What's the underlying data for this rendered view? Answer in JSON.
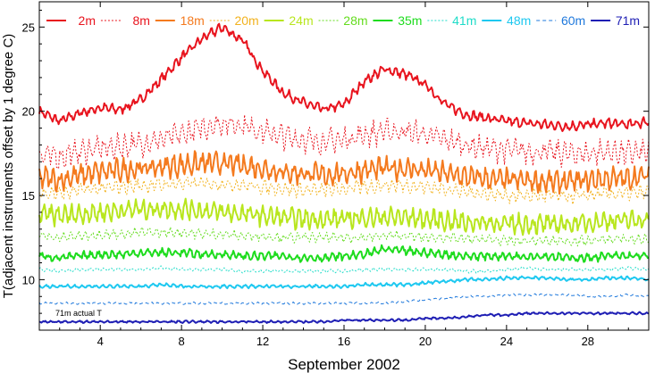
{
  "chart_data": {
    "type": "line",
    "title": "",
    "xlabel": "September 2002",
    "ylabel": "T(adjacent instruments offset by 1 degree C)",
    "xlim": [
      1,
      31
    ],
    "ylim": [
      7,
      26.5
    ],
    "x_ticks": [
      4,
      8,
      12,
      16,
      20,
      24,
      28
    ],
    "y_ticks": [
      10,
      15,
      20,
      25
    ],
    "grid": false,
    "legend_position": "top",
    "annotation": "71m actual T",
    "x_knots": [
      1,
      2,
      3,
      4,
      5,
      6,
      7,
      8,
      9,
      10,
      11,
      12,
      13,
      14,
      15,
      16,
      17,
      18,
      19,
      20,
      21,
      22,
      23,
      24,
      25,
      26,
      27,
      28,
      29,
      30,
      31
    ],
    "series": [
      {
        "name": "2m",
        "color": "#e8141e",
        "dash": "solid",
        "width": 2,
        "values": [
          20.0,
          19.4,
          19.9,
          20.2,
          20.1,
          20.7,
          21.9,
          23.2,
          24.3,
          25.0,
          24.2,
          22.4,
          21.1,
          20.5,
          20.1,
          20.4,
          21.8,
          22.5,
          22.2,
          21.6,
          20.4,
          19.8,
          19.6,
          19.4,
          19.3,
          19.2,
          19.1,
          19.2,
          19.3,
          19.2,
          19.4
        ]
      },
      {
        "name": "8m",
        "color": "#e8141e",
        "dash": "dotted",
        "width": 1,
        "values": [
          17.4,
          17.3,
          17.6,
          17.8,
          17.9,
          18.1,
          18.3,
          18.6,
          19.0,
          19.3,
          19.2,
          18.8,
          18.5,
          18.3,
          18.2,
          18.3,
          18.6,
          18.8,
          18.8,
          18.6,
          18.3,
          18.0,
          17.8,
          17.7,
          17.6,
          17.6,
          17.5,
          17.5,
          17.6,
          17.5,
          17.6
        ]
      },
      {
        "name": "18m",
        "color": "#f47a1e",
        "dash": "solid",
        "width": 2,
        "values": [
          16.1,
          15.9,
          16.2,
          16.4,
          16.5,
          16.6,
          16.7,
          16.8,
          16.9,
          16.9,
          16.8,
          16.6,
          16.4,
          16.3,
          16.2,
          16.3,
          16.5,
          16.6,
          16.6,
          16.5,
          16.3,
          16.1,
          16.0,
          15.9,
          15.9,
          15.8,
          15.8,
          15.9,
          16.0,
          16.0,
          16.2
        ]
      },
      {
        "name": "20m",
        "color": "#f2b21e",
        "dash": "dotted",
        "width": 1,
        "values": [
          15.2,
          15.1,
          15.3,
          15.4,
          15.5,
          15.6,
          15.6,
          15.7,
          15.7,
          15.7,
          15.6,
          15.5,
          15.4,
          15.3,
          15.3,
          15.4,
          15.5,
          15.6,
          15.6,
          15.5,
          15.4,
          15.2,
          15.1,
          15.0,
          15.0,
          15.0,
          14.9,
          15.0,
          15.1,
          15.1,
          15.2
        ]
      },
      {
        "name": "24m",
        "color": "#b8e61e",
        "dash": "solid",
        "width": 2,
        "values": [
          13.9,
          13.8,
          13.9,
          14.0,
          14.1,
          14.2,
          14.2,
          14.2,
          14.1,
          14.0,
          13.9,
          13.8,
          13.7,
          13.6,
          13.6,
          13.6,
          13.7,
          13.7,
          13.7,
          13.6,
          13.5,
          13.4,
          13.4,
          13.3,
          13.3,
          13.3,
          13.3,
          13.4,
          13.5,
          13.5,
          13.6
        ]
      },
      {
        "name": "28m",
        "color": "#64dc1e",
        "dash": "dotted",
        "width": 1,
        "values": [
          12.6,
          12.5,
          12.6,
          12.7,
          12.7,
          12.8,
          12.8,
          12.8,
          12.7,
          12.7,
          12.6,
          12.6,
          12.5,
          12.5,
          12.5,
          12.5,
          12.5,
          12.6,
          12.6,
          12.5,
          12.5,
          12.4,
          12.4,
          12.3,
          12.3,
          12.3,
          12.3,
          12.3,
          12.4,
          12.4,
          12.4
        ]
      },
      {
        "name": "35m",
        "color": "#1edc1e",
        "dash": "solid",
        "width": 2,
        "values": [
          11.4,
          11.3,
          11.4,
          11.5,
          11.5,
          11.6,
          11.6,
          11.6,
          11.5,
          11.5,
          11.4,
          11.4,
          11.4,
          11.3,
          11.3,
          11.4,
          11.5,
          11.8,
          11.7,
          11.6,
          11.5,
          11.4,
          11.4,
          11.4,
          11.4,
          11.4,
          11.3,
          11.3,
          11.4,
          11.4,
          11.4
        ]
      },
      {
        "name": "41m",
        "color": "#1edcc8",
        "dash": "dotted",
        "width": 1,
        "values": [
          10.6,
          10.5,
          10.6,
          10.6,
          10.6,
          10.6,
          10.7,
          10.6,
          10.6,
          10.6,
          10.5,
          10.5,
          10.5,
          10.5,
          10.5,
          10.5,
          10.6,
          10.6,
          10.6,
          10.6,
          10.6,
          10.5,
          10.5,
          10.6,
          10.7,
          10.6,
          10.6,
          10.6,
          10.6,
          10.7,
          10.6
        ]
      },
      {
        "name": "48m",
        "color": "#1ec8f0",
        "dash": "solid",
        "width": 2,
        "values": [
          9.6,
          9.6,
          9.6,
          9.6,
          9.6,
          9.6,
          9.7,
          9.6,
          9.6,
          9.6,
          9.6,
          9.6,
          9.6,
          9.6,
          9.6,
          9.6,
          9.7,
          9.7,
          9.7,
          9.8,
          9.9,
          10.0,
          10.0,
          10.1,
          10.1,
          10.1,
          10.0,
          10.0,
          10.1,
          10.1,
          10.0
        ]
      },
      {
        "name": "60m",
        "color": "#1e78dc",
        "dash": "dashed",
        "width": 1,
        "values": [
          8.6,
          8.6,
          8.6,
          8.6,
          8.6,
          8.6,
          8.6,
          8.6,
          8.6,
          8.6,
          8.6,
          8.6,
          8.6,
          8.6,
          8.6,
          8.6,
          8.6,
          8.6,
          8.7,
          8.8,
          8.9,
          9.0,
          9.0,
          9.1,
          9.1,
          9.1,
          9.1,
          9.0,
          9.0,
          9.1,
          9.0
        ]
      },
      {
        "name": "71m",
        "color": "#1e1eb4",
        "dash": "solid",
        "width": 2,
        "values": [
          7.5,
          7.5,
          7.5,
          7.5,
          7.5,
          7.5,
          7.5,
          7.5,
          7.5,
          7.5,
          7.5,
          7.5,
          7.5,
          7.5,
          7.5,
          7.6,
          7.6,
          7.6,
          7.6,
          7.7,
          7.7,
          7.8,
          7.9,
          7.9,
          8.0,
          8.0,
          8.0,
          8.0,
          8.0,
          8.0,
          8.0
        ]
      }
    ]
  }
}
